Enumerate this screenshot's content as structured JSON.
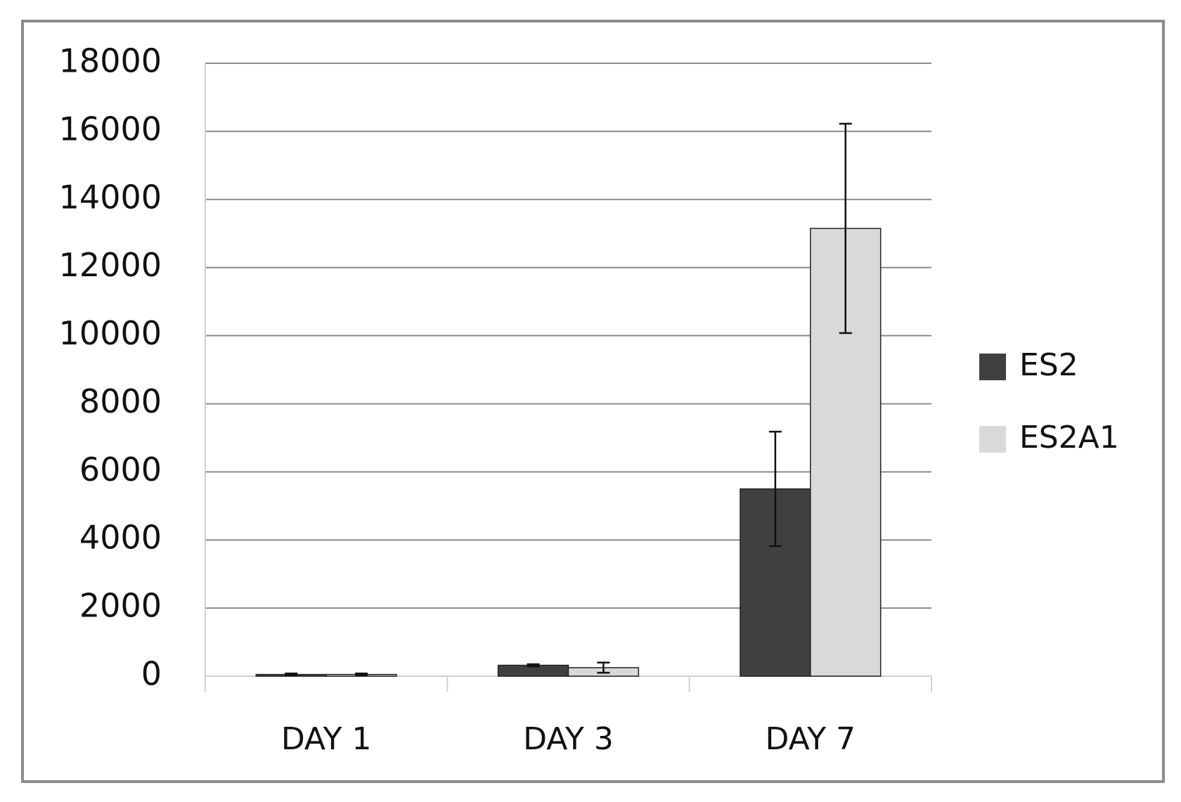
{
  "chart_data": {
    "type": "bar",
    "categories": [
      "DAY 1",
      "DAY 3",
      "DAY 7"
    ],
    "series": [
      {
        "name": "ES2",
        "color": "#404040",
        "values": [
          50,
          320,
          5500
        ],
        "errors": [
          30,
          30,
          1680
        ]
      },
      {
        "name": "ES2A1",
        "color": "#d9d9d9",
        "values": [
          50,
          250,
          13150
        ],
        "errors": [
          30,
          150,
          3075
        ]
      }
    ],
    "ylim": [
      0,
      18000
    ],
    "yticks": [
      0,
      2000,
      4000,
      6000,
      8000,
      10000,
      12000,
      14000,
      16000,
      18000
    ],
    "grid": true,
    "legend": "right"
  }
}
